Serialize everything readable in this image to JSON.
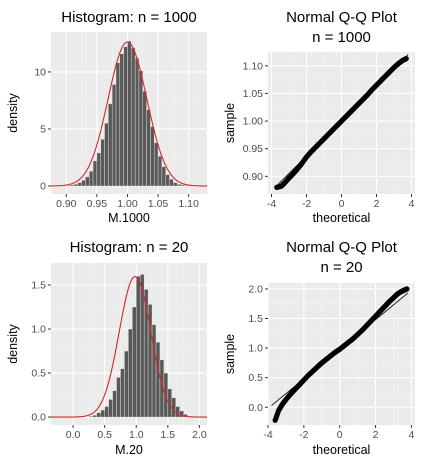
{
  "chart_data": [
    {
      "type": "bar",
      "subtype": "histogram-with-density-curve",
      "title": "Histogram: n = 1000",
      "xlabel": "M.1000",
      "ylabel": "density",
      "xlim": [
        0.875,
        1.13
      ],
      "ylim": [
        -0.7,
        13.5
      ],
      "xticks": [
        {
          "v": 0.9,
          "label": "0.90"
        },
        {
          "v": 0.95,
          "label": "0.95"
        },
        {
          "v": 1.0,
          "label": "1.00"
        },
        {
          "v": 1.05,
          "label": "1.05"
        },
        {
          "v": 1.1,
          "label": "1.10"
        }
      ],
      "yticks": [
        {
          "v": 0,
          "label": "0"
        },
        {
          "v": 5,
          "label": "5"
        },
        {
          "v": 10,
          "label": "10"
        }
      ],
      "bin_width": 0.00625,
      "bins_start": 0.9,
      "values": [
        0.05,
        0.1,
        0.15,
        0.3,
        0.5,
        0.8,
        1.3,
        2.2,
        2.9,
        4.1,
        5.5,
        7.2,
        8.9,
        10.8,
        11.6,
        12.2,
        12.7,
        12.1,
        11.2,
        10.1,
        8.3,
        6.7,
        5.2,
        3.8,
        2.6,
        1.7,
        1.0,
        0.6,
        0.3,
        0.15,
        0.1,
        0.05
      ],
      "curve": {
        "mean": 1.0,
        "sd": 0.0316,
        "color": "#d62728"
      },
      "grid": true,
      "bar_color": "#595959"
    },
    {
      "type": "scatter",
      "subtype": "normal-qq",
      "title_lines": [
        "Normal Q-Q Plot",
        "n = 1000"
      ],
      "xlabel": "theoretical",
      "ylabel": "sample",
      "xlim": [
        -4.2,
        4.2
      ],
      "ylim": [
        0.868,
        1.125
      ],
      "xticks": [
        {
          "v": -4,
          "label": "-4"
        },
        {
          "v": -2,
          "label": "-2"
        },
        {
          "v": 0,
          "label": "0"
        },
        {
          "v": 2,
          "label": "2"
        },
        {
          "v": 4,
          "label": "4"
        }
      ],
      "yticks": [
        {
          "v": 0.9,
          "label": "0.90"
        },
        {
          "v": 0.95,
          "label": "0.95"
        },
        {
          "v": 1.0,
          "label": "1.00"
        },
        {
          "v": 1.05,
          "label": "1.05"
        },
        {
          "v": 1.1,
          "label": "1.10"
        }
      ],
      "points": [
        [
          -3.7,
          0.88
        ],
        [
          -3.45,
          0.882
        ],
        [
          -3.25,
          0.888
        ],
        [
          -3.0,
          0.897
        ],
        [
          -2.75,
          0.905
        ],
        [
          -2.5,
          0.914
        ],
        [
          -2.25,
          0.924
        ],
        [
          -2.0,
          0.935
        ],
        [
          -1.75,
          0.944
        ],
        [
          -1.5,
          0.952
        ],
        [
          -1.25,
          0.96
        ],
        [
          -1.0,
          0.968
        ],
        [
          -0.75,
          0.976
        ],
        [
          -0.5,
          0.984
        ],
        [
          -0.25,
          0.992
        ],
        [
          0,
          1.0
        ],
        [
          0.25,
          1.008
        ],
        [
          0.5,
          1.016
        ],
        [
          0.75,
          1.024
        ],
        [
          1.0,
          1.032
        ],
        [
          1.25,
          1.04
        ],
        [
          1.5,
          1.048
        ],
        [
          1.75,
          1.057
        ],
        [
          2.0,
          1.065
        ],
        [
          2.25,
          1.073
        ],
        [
          2.5,
          1.081
        ],
        [
          2.75,
          1.089
        ],
        [
          3.0,
          1.097
        ],
        [
          3.25,
          1.104
        ],
        [
          3.5,
          1.11
        ],
        [
          3.7,
          1.113
        ]
      ],
      "reference_line": {
        "intercept": 1.0,
        "slope": 0.0316
      },
      "grid": true
    },
    {
      "type": "bar",
      "subtype": "histogram-with-density-curve",
      "title": "Histogram: n = 20",
      "xlabel": "M.20",
      "ylabel": "density",
      "xlim": [
        -0.35,
        2.12
      ],
      "ylim": [
        -0.09,
        1.75
      ],
      "xticks": [
        {
          "v": 0.0,
          "label": "0.0"
        },
        {
          "v": 0.5,
          "label": "0.5"
        },
        {
          "v": 1.0,
          "label": "1.0"
        },
        {
          "v": 1.5,
          "label": "1.5"
        },
        {
          "v": 2.0,
          "label": "2.0"
        }
      ],
      "yticks": [
        {
          "v": 0.0,
          "label": "0.0"
        },
        {
          "v": 0.5,
          "label": "0.5"
        },
        {
          "v": 1.0,
          "label": "1.0"
        },
        {
          "v": 1.5,
          "label": "1.5"
        }
      ],
      "bin_width": 0.0625,
      "bins_start": 0.25,
      "values": [
        0.01,
        0.02,
        0.05,
        0.08,
        0.12,
        0.2,
        0.3,
        0.45,
        0.55,
        0.75,
        1.0,
        1.25,
        1.6,
        1.62,
        1.45,
        1.28,
        1.05,
        0.85,
        0.65,
        0.5,
        0.32,
        0.22,
        0.12,
        0.07,
        0.03
      ],
      "curve": {
        "mean": 0.98,
        "sd": 0.25,
        "color": "#d62728"
      },
      "grid": true,
      "bar_color": "#595959"
    },
    {
      "type": "scatter",
      "subtype": "normal-qq",
      "title_lines": [
        "Normal Q-Q Plot",
        "n = 20"
      ],
      "xlabel": "theoretical",
      "ylabel": "sample",
      "xlim": [
        -4.0,
        4.2
      ],
      "ylim": [
        -0.3,
        2.1
      ],
      "xticks": [
        {
          "v": -4,
          "label": "-4"
        },
        {
          "v": -2,
          "label": "-2"
        },
        {
          "v": 0,
          "label": "0"
        },
        {
          "v": 2,
          "label": "2"
        },
        {
          "v": 4,
          "label": "4"
        }
      ],
      "yticks": [
        {
          "v": 0.0,
          "label": "0.0"
        },
        {
          "v": 0.5,
          "label": "0.5"
        },
        {
          "v": 1.0,
          "label": "1.0"
        },
        {
          "v": 1.5,
          "label": "1.5"
        },
        {
          "v": 2.0,
          "label": "2.0"
        }
      ],
      "points": [
        [
          -3.6,
          -0.22
        ],
        [
          -3.4,
          -0.05
        ],
        [
          -3.2,
          0.05
        ],
        [
          -3.0,
          0.13
        ],
        [
          -2.75,
          0.22
        ],
        [
          -2.5,
          0.3
        ],
        [
          -2.25,
          0.38
        ],
        [
          -2.0,
          0.46
        ],
        [
          -1.75,
          0.54
        ],
        [
          -1.5,
          0.61
        ],
        [
          -1.25,
          0.68
        ],
        [
          -1.0,
          0.75
        ],
        [
          -0.75,
          0.81
        ],
        [
          -0.5,
          0.87
        ],
        [
          -0.25,
          0.93
        ],
        [
          0,
          0.98
        ],
        [
          0.25,
          1.04
        ],
        [
          0.5,
          1.1
        ],
        [
          0.75,
          1.16
        ],
        [
          1.0,
          1.23
        ],
        [
          1.25,
          1.3
        ],
        [
          1.5,
          1.38
        ],
        [
          1.75,
          1.46
        ],
        [
          2.0,
          1.54
        ],
        [
          2.25,
          1.62
        ],
        [
          2.5,
          1.7
        ],
        [
          2.75,
          1.78
        ],
        [
          3.0,
          1.85
        ],
        [
          3.2,
          1.91
        ],
        [
          3.4,
          1.95
        ],
        [
          3.6,
          1.98
        ],
        [
          3.75,
          2.0
        ]
      ],
      "reference_line": {
        "intercept": 0.98,
        "slope": 0.25
      },
      "grid": true
    }
  ]
}
